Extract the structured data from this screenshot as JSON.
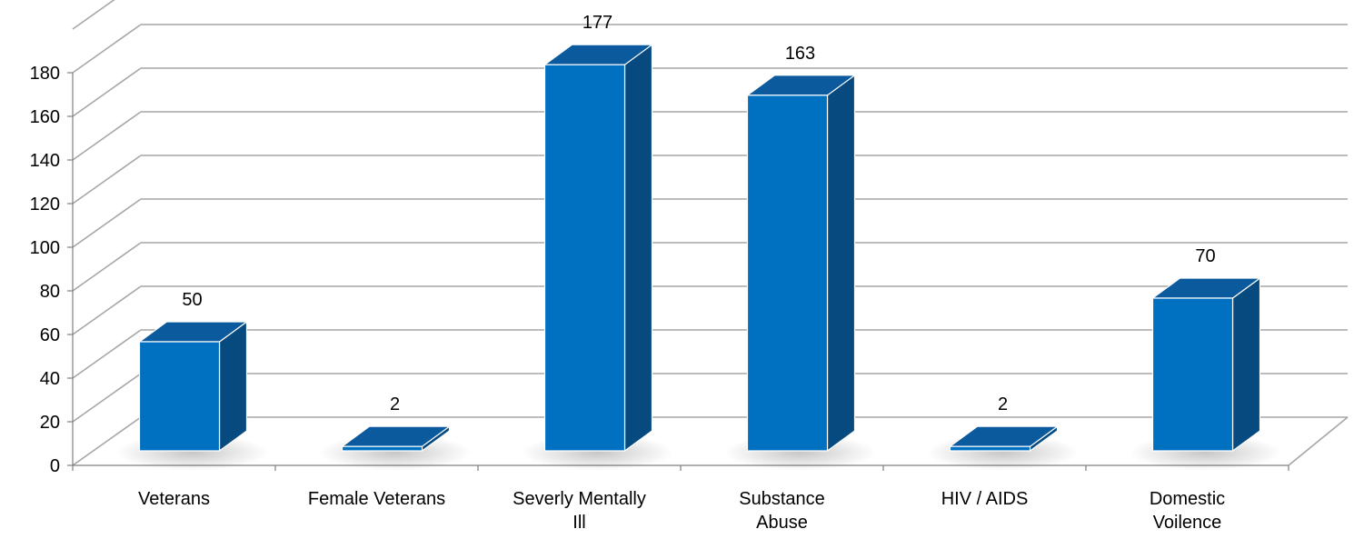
{
  "chart_data": {
    "type": "bar",
    "style": "3d-column",
    "categories": [
      [
        "Veterans"
      ],
      [
        "Female Veterans"
      ],
      [
        "Severly Mentally",
        "Ill"
      ],
      [
        "Substance",
        "Abuse"
      ],
      [
        "HIV / AIDS"
      ],
      [
        "Domestic",
        "Voilence"
      ]
    ],
    "values": [
      50,
      2,
      177,
      163,
      2,
      70
    ],
    "data_labels": [
      "50",
      "2",
      "177",
      "163",
      "2",
      "70"
    ],
    "title": "",
    "xlabel": "",
    "ylabel": "",
    "ylim": [
      0,
      200
    ],
    "yticks": [
      0,
      20,
      40,
      60,
      80,
      100,
      120,
      140,
      160,
      180
    ],
    "ytick_labels": [
      "0",
      "20",
      "40",
      "60",
      "80",
      "100",
      "120",
      "140",
      "160",
      "180"
    ],
    "grid": true,
    "legend": "none",
    "colors": {
      "bar_front": "#0070C0",
      "bar_top": "#0B5A9E",
      "bar_side": "#064A80",
      "gridline": "#A6A6A6",
      "axis": "#808080",
      "text": "#000000"
    }
  }
}
